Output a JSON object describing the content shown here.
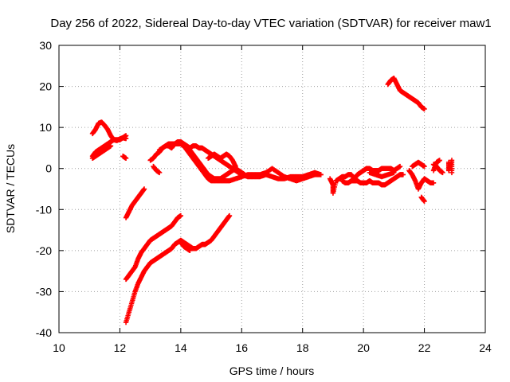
{
  "chart_data": {
    "type": "scatter",
    "title": "Day 256 of 2022, Sidereal Day-to-day VTEC variation (SDTVAR) for receiver maw1",
    "xlabel": "GPS time / hours",
    "ylabel": "SDTVAR / TECUs",
    "xlim": [
      10,
      24
    ],
    "ylim": [
      -40,
      30
    ],
    "xticks": [
      "10",
      "12",
      "14",
      "16",
      "18",
      "20",
      "22",
      "24"
    ],
    "yticks": [
      "30",
      "20",
      "10",
      "0",
      "-10",
      "-20",
      "-30",
      "-40"
    ],
    "grid": true,
    "marker": "plus",
    "color": "#ff0000",
    "segments": [
      [
        [
          11.1,
          8.5
        ],
        [
          11.2,
          9.5
        ],
        [
          11.3,
          11.0
        ],
        [
          11.4,
          11.3
        ],
        [
          11.5,
          10.5
        ],
        [
          11.6,
          9.5
        ],
        [
          11.7,
          8.0
        ],
        [
          11.8,
          7.0
        ],
        [
          11.9,
          6.8
        ],
        [
          12.0,
          7.2
        ],
        [
          12.1,
          7.5
        ],
        [
          12.2,
          7.3
        ]
      ],
      [
        [
          11.1,
          3.0
        ],
        [
          11.2,
          4.0
        ],
        [
          11.3,
          4.5
        ],
        [
          11.4,
          5.0
        ],
        [
          11.5,
          5.5
        ],
        [
          11.6,
          6.0
        ],
        [
          11.7,
          6.5
        ],
        [
          11.8,
          7.0
        ],
        [
          11.9,
          7.0
        ],
        [
          12.0,
          7.0
        ],
        [
          12.1,
          7.5
        ],
        [
          12.2,
          8.0
        ]
      ],
      [
        [
          11.1,
          2.5
        ],
        [
          11.2,
          3.0
        ],
        [
          11.3,
          3.5
        ],
        [
          11.4,
          4.0
        ],
        [
          11.5,
          4.5
        ],
        [
          11.6,
          5.0
        ],
        [
          11.7,
          5.5
        ]
      ],
      [
        [
          12.1,
          3.0
        ],
        [
          12.2,
          2.5
        ]
      ],
      [
        [
          12.2,
          -12.0
        ],
        [
          12.3,
          -10.5
        ],
        [
          12.4,
          -9.0
        ],
        [
          12.5,
          -8.0
        ],
        [
          12.6,
          -7.0
        ],
        [
          12.7,
          -6.0
        ],
        [
          12.8,
          -5.0
        ]
      ],
      [
        [
          12.2,
          -27.0
        ],
        [
          12.3,
          -26.0
        ],
        [
          12.4,
          -25.0
        ],
        [
          12.5,
          -24.0
        ],
        [
          12.6,
          -22.0
        ],
        [
          12.7,
          -20.5
        ],
        [
          12.8,
          -19.5
        ],
        [
          12.9,
          -18.5
        ],
        [
          13.0,
          -17.5
        ],
        [
          13.1,
          -17.0
        ],
        [
          13.2,
          -16.5
        ],
        [
          13.3,
          -16.0
        ],
        [
          13.4,
          -15.5
        ],
        [
          13.5,
          -15.0
        ],
        [
          13.6,
          -14.5
        ],
        [
          13.7,
          -14.0
        ],
        [
          13.8,
          -13.0
        ],
        [
          13.9,
          -12.0
        ],
        [
          14.0,
          -11.5
        ]
      ],
      [
        [
          12.2,
          -37.5
        ],
        [
          12.3,
          -35.0
        ],
        [
          12.4,
          -32.5
        ],
        [
          12.5,
          -30.0
        ],
        [
          12.6,
          -28.0
        ],
        [
          12.7,
          -26.5
        ],
        [
          12.8,
          -25.0
        ],
        [
          12.9,
          -24.0
        ],
        [
          13.0,
          -23.0
        ],
        [
          13.1,
          -22.5
        ],
        [
          13.2,
          -22.0
        ],
        [
          13.3,
          -21.5
        ],
        [
          13.4,
          -21.0
        ],
        [
          13.5,
          -20.5
        ],
        [
          13.6,
          -20.0
        ],
        [
          13.7,
          -19.5
        ],
        [
          13.8,
          -18.5
        ],
        [
          13.9,
          -18.0
        ],
        [
          14.0,
          -17.5
        ],
        [
          14.1,
          -18.0
        ],
        [
          14.2,
          -18.5
        ],
        [
          14.3,
          -19.0
        ],
        [
          14.4,
          -19.5
        ],
        [
          14.5,
          -19.5
        ],
        [
          14.6,
          -19.0
        ],
        [
          14.7,
          -18.5
        ],
        [
          14.8,
          -18.5
        ],
        [
          14.9,
          -18.0
        ],
        [
          15.0,
          -17.5
        ],
        [
          15.1,
          -16.5
        ],
        [
          15.2,
          -15.5
        ],
        [
          15.3,
          -14.5
        ],
        [
          15.4,
          -13.5
        ],
        [
          15.5,
          -12.5
        ],
        [
          15.6,
          -11.5
        ]
      ],
      [
        [
          14.0,
          -18.0
        ],
        [
          14.1,
          -19.0
        ],
        [
          14.2,
          -19.5
        ],
        [
          14.3,
          -20.0
        ]
      ],
      [
        [
          13.0,
          2.0
        ],
        [
          13.1,
          2.5
        ],
        [
          13.2,
          3.5
        ],
        [
          13.3,
          4.0
        ],
        [
          13.4,
          5.0
        ],
        [
          13.5,
          5.5
        ],
        [
          13.6,
          5.5
        ],
        [
          13.7,
          5.0
        ],
        [
          13.8,
          6.0
        ],
        [
          13.9,
          6.5
        ],
        [
          14.0,
          6.5
        ],
        [
          14.1,
          6.0
        ],
        [
          14.2,
          5.5
        ],
        [
          14.3,
          4.5
        ],
        [
          14.4,
          3.5
        ],
        [
          14.5,
          2.5
        ],
        [
          14.6,
          1.5
        ],
        [
          14.7,
          0.5
        ],
        [
          14.8,
          -0.5
        ],
        [
          14.9,
          -1.5
        ],
        [
          15.0,
          -2.0
        ],
        [
          15.1,
          -2.5
        ],
        [
          15.2,
          -2.5
        ],
        [
          15.3,
          -2.5
        ],
        [
          15.4,
          -2.0
        ],
        [
          15.5,
          -1.5
        ],
        [
          15.6,
          -1.0
        ],
        [
          15.7,
          -0.5
        ],
        [
          15.8,
          0.0
        ],
        [
          15.9,
          -0.5
        ],
        [
          16.0,
          -1.0
        ],
        [
          16.1,
          -1.5
        ]
      ],
      [
        [
          13.3,
          4.5
        ],
        [
          13.4,
          5.0
        ],
        [
          13.5,
          5.5
        ],
        [
          13.6,
          6.0
        ],
        [
          13.7,
          6.0
        ],
        [
          13.8,
          6.0
        ],
        [
          13.9,
          6.0
        ],
        [
          14.0,
          6.0
        ],
        [
          14.1,
          5.5
        ],
        [
          14.2,
          5.5
        ],
        [
          14.3,
          5.0
        ],
        [
          14.4,
          5.5
        ],
        [
          14.5,
          5.5
        ],
        [
          14.6,
          5.0
        ],
        [
          14.7,
          5.0
        ],
        [
          14.8,
          4.5
        ],
        [
          14.9,
          4.0
        ],
        [
          15.0,
          3.5
        ],
        [
          15.1,
          3.0
        ],
        [
          15.2,
          2.5
        ],
        [
          15.3,
          2.0
        ],
        [
          15.4,
          1.5
        ],
        [
          15.5,
          1.0
        ],
        [
          15.6,
          0.5
        ],
        [
          15.7,
          0.0
        ],
        [
          15.8,
          -0.5
        ],
        [
          15.9,
          -1.0
        ],
        [
          16.0,
          -1.5
        ],
        [
          16.2,
          -2.0
        ],
        [
          16.4,
          -2.0
        ],
        [
          16.6,
          -2.0
        ],
        [
          16.8,
          -1.5
        ],
        [
          17.0,
          -2.0
        ],
        [
          17.2,
          -2.5
        ],
        [
          17.4,
          -2.5
        ],
        [
          17.6,
          -2.0
        ],
        [
          17.8,
          -2.0
        ],
        [
          18.0,
          -2.0
        ],
        [
          18.2,
          -1.5
        ],
        [
          18.4,
          -1.0
        ],
        [
          18.6,
          -1.5
        ]
      ],
      [
        [
          14.0,
          6.0
        ],
        [
          14.1,
          5.5
        ],
        [
          14.2,
          4.5
        ],
        [
          14.3,
          3.5
        ],
        [
          14.4,
          2.5
        ],
        [
          14.5,
          1.5
        ],
        [
          14.6,
          0.5
        ],
        [
          14.7,
          -0.5
        ],
        [
          14.8,
          -1.5
        ],
        [
          14.9,
          -2.5
        ],
        [
          15.0,
          -3.0
        ],
        [
          15.2,
          -3.0
        ],
        [
          15.4,
          -3.0
        ],
        [
          15.6,
          -3.0
        ],
        [
          15.8,
          -2.5
        ],
        [
          16.0,
          -2.0
        ],
        [
          16.2,
          -1.5
        ],
        [
          16.4,
          -1.5
        ],
        [
          16.6,
          -1.5
        ],
        [
          16.8,
          -1.0
        ],
        [
          17.0,
          0.0
        ],
        [
          17.2,
          -1.0
        ],
        [
          17.4,
          -2.0
        ],
        [
          17.6,
          -2.5
        ],
        [
          17.8,
          -3.0
        ],
        [
          18.0,
          -2.5
        ],
        [
          18.2,
          -2.0
        ],
        [
          18.4,
          -1.5
        ],
        [
          18.6,
          -1.5
        ]
      ],
      [
        [
          13.1,
          0.5
        ],
        [
          13.2,
          -0.5
        ],
        [
          13.3,
          -1.0
        ]
      ],
      [
        [
          14.9,
          2.5
        ],
        [
          15.0,
          3.0
        ],
        [
          15.1,
          3.5
        ],
        [
          15.2,
          3.0
        ],
        [
          15.3,
          2.5
        ],
        [
          15.4,
          3.0
        ],
        [
          15.5,
          3.5
        ],
        [
          15.6,
          3.0
        ],
        [
          15.7,
          2.0
        ],
        [
          15.8,
          0.5
        ]
      ],
      [
        [
          18.9,
          -2.5
        ],
        [
          19.0,
          -4.0
        ],
        [
          19.0,
          -6.0
        ],
        [
          19.1,
          -3.0
        ],
        [
          19.2,
          -2.5
        ],
        [
          19.3,
          -2.0
        ],
        [
          19.4,
          -2.0
        ],
        [
          19.5,
          -1.5
        ],
        [
          19.6,
          -1.5
        ],
        [
          19.7,
          -2.5
        ],
        [
          19.8,
          -1.5
        ],
        [
          19.9,
          -1.0
        ],
        [
          20.0,
          -0.5
        ],
        [
          20.1,
          0.0
        ],
        [
          20.2,
          0.0
        ],
        [
          20.3,
          -0.5
        ],
        [
          20.4,
          -0.5
        ],
        [
          20.5,
          -0.5
        ],
        [
          20.6,
          0.0
        ],
        [
          20.7,
          0.0
        ],
        [
          20.8,
          0.0
        ],
        [
          20.9,
          0.0
        ],
        [
          21.0,
          -0.5
        ],
        [
          21.1,
          0.0
        ],
        [
          21.2,
          0.5
        ]
      ],
      [
        [
          19.3,
          -3.0
        ],
        [
          19.4,
          -3.5
        ],
        [
          19.5,
          -3.5
        ],
        [
          19.6,
          -3.0
        ],
        [
          19.7,
          -3.0
        ],
        [
          19.8,
          -3.0
        ],
        [
          19.9,
          -3.5
        ],
        [
          20.0,
          -3.5
        ],
        [
          20.1,
          -3.5
        ],
        [
          20.2,
          -3.0
        ],
        [
          20.3,
          -3.5
        ],
        [
          20.4,
          -3.5
        ],
        [
          20.5,
          -3.5
        ],
        [
          20.6,
          -4.0
        ],
        [
          20.7,
          -4.0
        ],
        [
          20.8,
          -3.5
        ],
        [
          20.9,
          -3.0
        ],
        [
          21.0,
          -2.5
        ],
        [
          21.1,
          -2.0
        ],
        [
          21.2,
          -1.5
        ],
        [
          21.3,
          -1.5
        ]
      ],
      [
        [
          20.2,
          -1.0
        ],
        [
          20.4,
          -1.5
        ],
        [
          20.6,
          -2.0
        ],
        [
          20.8,
          -1.5
        ],
        [
          21.0,
          -1.0
        ]
      ],
      [
        [
          20.8,
          20.5
        ],
        [
          20.9,
          21.5
        ],
        [
          21.0,
          22.0
        ],
        [
          21.1,
          20.5
        ],
        [
          21.2,
          19.0
        ],
        [
          21.3,
          18.5
        ],
        [
          21.4,
          18.0
        ],
        [
          21.5,
          17.5
        ],
        [
          21.6,
          17.0
        ],
        [
          21.7,
          16.5
        ],
        [
          21.8,
          16.0
        ],
        [
          21.9,
          15.0
        ],
        [
          22.0,
          14.5
        ]
      ],
      [
        [
          21.5,
          -0.5
        ],
        [
          21.6,
          -1.5
        ],
        [
          21.7,
          -3.0
        ],
        [
          21.8,
          -5.0
        ],
        [
          21.9,
          -3.5
        ],
        [
          22.0,
          -2.5
        ],
        [
          22.1,
          -3.0
        ],
        [
          22.2,
          -3.5
        ],
        [
          22.3,
          -3.5
        ]
      ],
      [
        [
          21.6,
          0.5
        ],
        [
          21.7,
          1.0
        ],
        [
          21.8,
          1.5
        ],
        [
          21.9,
          1.0
        ],
        [
          22.0,
          0.5
        ]
      ],
      [
        [
          21.9,
          -7.0
        ],
        [
          22.0,
          -8.0
        ]
      ],
      [
        [
          22.3,
          1.0
        ],
        [
          22.4,
          0.5
        ],
        [
          22.5,
          -0.5
        ],
        [
          22.6,
          -1.0
        ]
      ],
      [
        [
          22.3,
          -0.5
        ],
        [
          22.4,
          1.5
        ],
        [
          22.5,
          2.0
        ]
      ],
      [
        [
          22.8,
          1.5
        ],
        [
          22.8,
          -0.5
        ],
        [
          22.9,
          2.0
        ],
        [
          22.9,
          -1.0
        ]
      ]
    ]
  }
}
